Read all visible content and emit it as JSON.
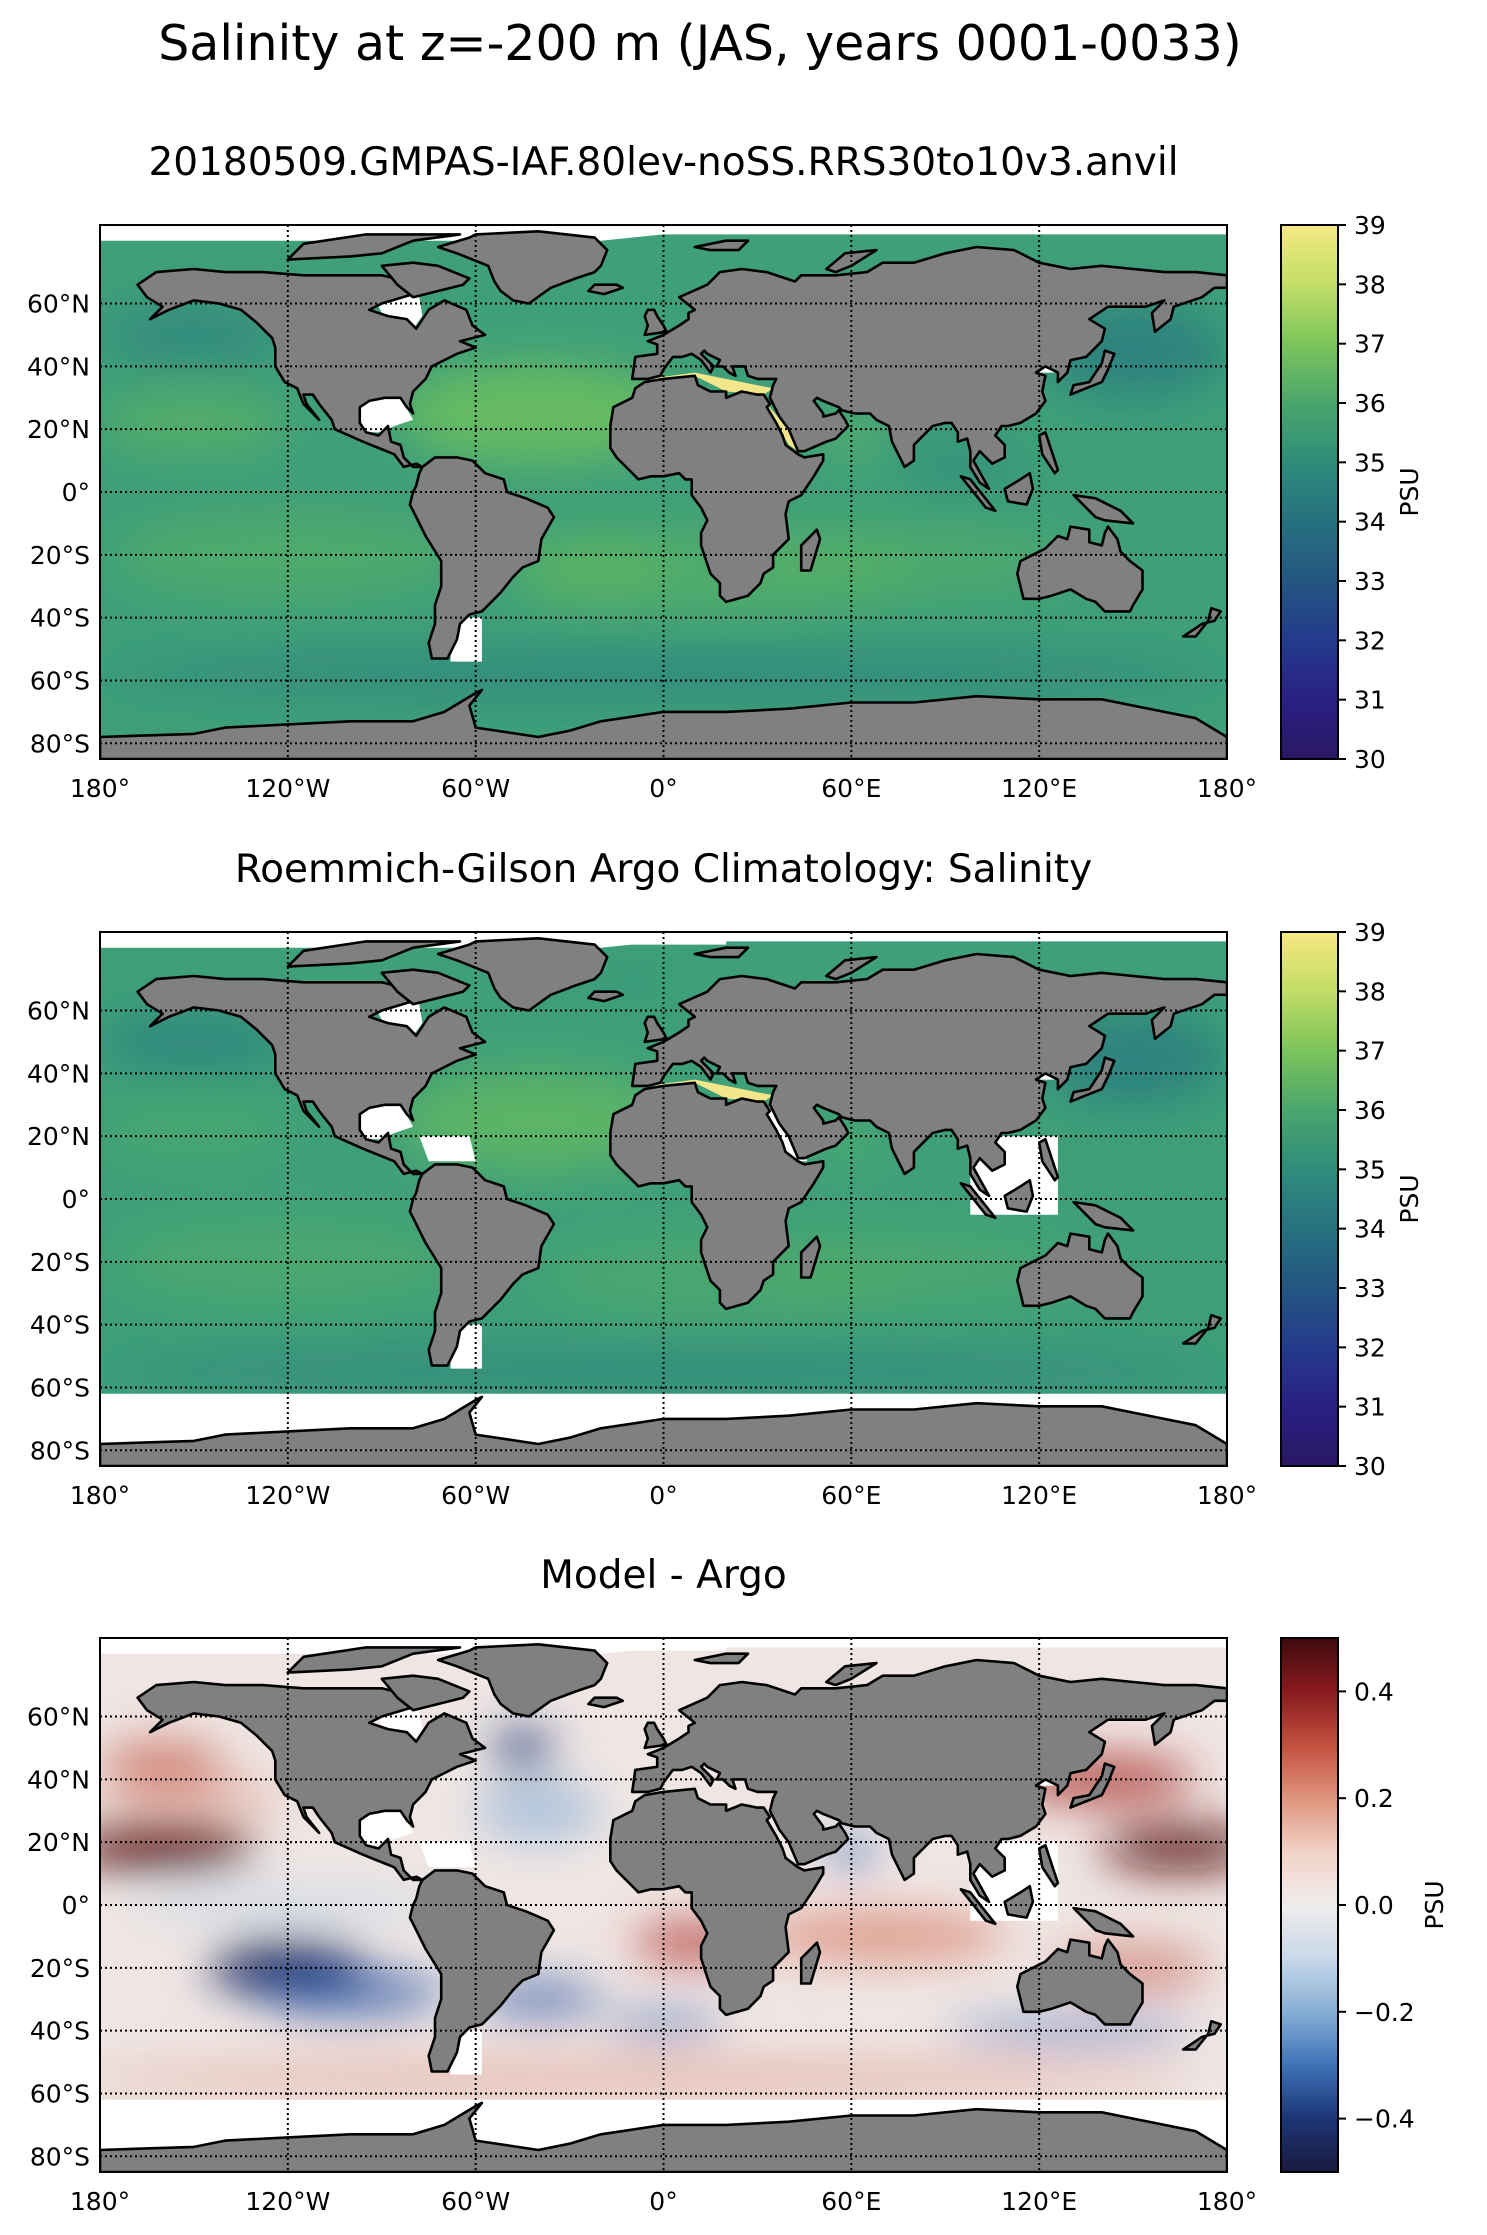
{
  "figure": {
    "title": "Salinity at z=-200 m (JAS, years 0001-0033)"
  },
  "colors": {
    "land": "#808080",
    "grid": "#000000",
    "missing": "#ffffff"
  },
  "panels": [
    {
      "id": "model",
      "title": "20180509.GMPAS-IAF.80lev-noSS.RRS30to10v3.anvil",
      "colormap": "haline",
      "colorbar": {
        "label": "PSU",
        "range": [
          30,
          39
        ],
        "ticks": [
          "39",
          "38",
          "37",
          "36",
          "35",
          "34",
          "33",
          "32",
          "31",
          "30"
        ]
      }
    },
    {
      "id": "observation",
      "title": "Roemmich-Gilson Argo Climatology: Salinity",
      "colormap": "haline",
      "colorbar": {
        "label": "PSU",
        "range": [
          30,
          39
        ],
        "ticks": [
          "39",
          "38",
          "37",
          "36",
          "35",
          "34",
          "33",
          "32",
          "31",
          "30"
        ]
      }
    },
    {
      "id": "difference",
      "title": "Model - Argo",
      "colormap": "balance",
      "colorbar": {
        "label": "PSU",
        "range": [
          -0.5,
          0.5
        ],
        "ticks": [
          "0.4",
          "0.2",
          "0.0",
          "−0.2",
          "−0.4"
        ]
      }
    }
  ],
  "axes": {
    "lat_ticks": [
      "60°N",
      "40°N",
      "20°N",
      "0°",
      "20°S",
      "40°S",
      "60°S",
      "80°S"
    ],
    "lon_ticks": [
      "180°",
      "120°W",
      "60°W",
      "0°",
      "60°E",
      "120°E",
      "180°"
    ],
    "lat_range": [
      -85,
      85
    ],
    "lon_range": [
      -180,
      180
    ]
  },
  "map_data": {
    "type": "heatmap",
    "projection": "PlateCarree",
    "variable": "Salinity",
    "units": "PSU",
    "features": {
      "mediterranean_salinity_model_psu": 39,
      "mediterranean_salinity_argo_psu": 38.5,
      "north_atlantic_subtropical_salinity_psu": 36.8,
      "red_sea_salinity_model_psu": 38
    }
  }
}
